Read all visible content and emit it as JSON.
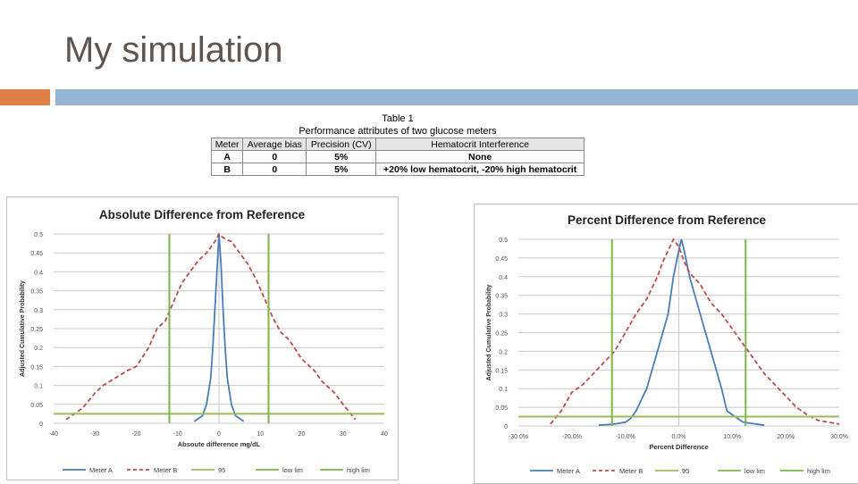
{
  "slide": {
    "title": "My simulation"
  },
  "table": {
    "caption": "Table 1",
    "subtitle": "Performance attributes of two glucose meters",
    "headers": [
      "Meter",
      "Average bias",
      "Precision (CV)",
      "Hematocrit Interference"
    ],
    "rows": [
      [
        "A",
        "0",
        "5%",
        "None"
      ],
      [
        "B",
        "0",
        "5%",
        "+20% low hematocrit, -20% high hematocrit"
      ]
    ]
  },
  "colors": {
    "meter_a": "#4a7ebb",
    "meter_b": "#be4b48",
    "threshold": "#9bbb59",
    "lim": "#7ab648",
    "grid": "#c8c8c8",
    "accent_orange": "#dd8047",
    "accent_blue": "#94b6d2"
  },
  "chart_data": [
    {
      "type": "line",
      "title": "Absolute Difference from Reference",
      "xlabel": "Absoute difference mg/dL",
      "ylabel": "Adjusted Cumulative Probability",
      "xlim": [
        -40,
        40
      ],
      "ylim": [
        0,
        0.5
      ],
      "x_ticks": [
        -40,
        -30,
        -20,
        -10,
        0,
        10,
        20,
        30,
        40
      ],
      "x_tick_labels": [
        "-40",
        "-30",
        "-20",
        "-10",
        "0",
        "10",
        "20",
        "30",
        "40"
      ],
      "y_ticks": [
        0,
        0.05,
        0.1,
        0.15,
        0.2,
        0.25,
        0.3,
        0.35,
        0.4,
        0.45,
        0.5
      ],
      "y_tick_labels": [
        "0",
        "0.05",
        "0.1",
        "0.15",
        "0.2",
        "0.25",
        "0.3",
        "0.35",
        "0.4",
        "0.45",
        "0.5"
      ],
      "series": [
        {
          "name": "Meter A",
          "style": "solid",
          "color": "#4a7ebb",
          "x": [
            -6,
            -4,
            -3,
            -2,
            -1.5,
            -1,
            -0.5,
            0,
            0.5,
            1,
            1.5,
            2,
            3,
            4,
            6
          ],
          "y": [
            0.005,
            0.02,
            0.05,
            0.12,
            0.2,
            0.3,
            0.4,
            0.5,
            0.42,
            0.3,
            0.2,
            0.12,
            0.05,
            0.02,
            0.005
          ]
        },
        {
          "name": "Meter B",
          "style": "dashed",
          "color": "#be4b48",
          "x": [
            -37,
            -33,
            -30,
            -28,
            -25,
            -22,
            -20,
            -17,
            -15,
            -13,
            -11,
            -9,
            -7,
            -5,
            -3,
            -1,
            0,
            1,
            3,
            5,
            7,
            9,
            11,
            13,
            15,
            17,
            20,
            23,
            25,
            28,
            30,
            33
          ],
          "y": [
            0.01,
            0.04,
            0.08,
            0.1,
            0.12,
            0.14,
            0.15,
            0.2,
            0.25,
            0.27,
            0.32,
            0.37,
            0.4,
            0.43,
            0.45,
            0.48,
            0.5,
            0.49,
            0.48,
            0.45,
            0.42,
            0.38,
            0.33,
            0.28,
            0.24,
            0.22,
            0.17,
            0.14,
            0.11,
            0.08,
            0.05,
            0.01
          ]
        },
        {
          "name": "95",
          "style": "solid",
          "color": "#9bbb59",
          "kind": "hline",
          "value": 0.025
        },
        {
          "name": "low lim",
          "style": "solid",
          "color": "#7ab648",
          "kind": "vline",
          "value": -12
        },
        {
          "name": "high lim",
          "style": "solid",
          "color": "#7ab648",
          "kind": "vline",
          "value": 12
        }
      ],
      "legend": [
        "Meter A",
        "Meter B",
        "95",
        "low lim",
        "high lim"
      ],
      "legend_position": "bottom"
    },
    {
      "type": "line",
      "title": "Percent Difference from Reference",
      "xlabel": "Percent Difference",
      "ylabel": "Adjusted Cumulative Probability",
      "xlim": [
        -30,
        30
      ],
      "ylim": [
        0,
        0.5
      ],
      "x_ticks": [
        -30,
        -20,
        -10,
        0,
        10,
        20,
        30
      ],
      "x_tick_labels": [
        "-30.0%",
        "-20.0%",
        "-10.0%",
        "0.0%",
        "10.0%",
        "20.0%",
        "30.0%"
      ],
      "y_ticks": [
        0,
        0.05,
        0.1,
        0.15,
        0.2,
        0.25,
        0.3,
        0.35,
        0.4,
        0.45,
        0.5
      ],
      "y_tick_labels": [
        "0",
        "0.05",
        "0.1",
        "0.15",
        "0.2",
        "0.25",
        "0.3",
        "0.35",
        "0.4",
        "0.45",
        "0.5"
      ],
      "series": [
        {
          "name": "Meter A",
          "style": "solid",
          "color": "#4a7ebb",
          "x": [
            -15,
            -12,
            -10,
            -9,
            -8,
            -6,
            -5,
            -4,
            -3,
            -2,
            -1,
            0,
            0.5,
            1,
            2,
            3,
            4,
            5,
            6,
            7,
            8,
            9,
            12,
            16
          ],
          "y": [
            0.002,
            0.005,
            0.01,
            0.02,
            0.04,
            0.1,
            0.15,
            0.2,
            0.25,
            0.3,
            0.4,
            0.47,
            0.5,
            0.47,
            0.4,
            0.35,
            0.3,
            0.25,
            0.2,
            0.15,
            0.1,
            0.04,
            0.01,
            0.002
          ]
        },
        {
          "name": "Meter B",
          "style": "dashed",
          "color": "#be4b48",
          "x": [
            -24,
            -22,
            -20,
            -18,
            -16,
            -14,
            -12,
            -10,
            -8,
            -6,
            -4,
            -3,
            -2,
            -1,
            0,
            1,
            2,
            4,
            6,
            8,
            10,
            12,
            14,
            16,
            18,
            20,
            22,
            24,
            26,
            28,
            30
          ],
          "y": [
            0.005,
            0.04,
            0.09,
            0.11,
            0.14,
            0.17,
            0.2,
            0.25,
            0.3,
            0.34,
            0.4,
            0.44,
            0.47,
            0.5,
            0.48,
            0.44,
            0.41,
            0.38,
            0.33,
            0.3,
            0.26,
            0.22,
            0.18,
            0.14,
            0.11,
            0.08,
            0.05,
            0.03,
            0.015,
            0.01,
            0.005
          ]
        },
        {
          "name": "95",
          "style": "solid",
          "color": "#9bbb59",
          "kind": "hline",
          "value": 0.025
        },
        {
          "name": "low lim",
          "style": "solid",
          "color": "#7ab648",
          "kind": "vline",
          "value": -12.5
        },
        {
          "name": "high lim",
          "style": "solid",
          "color": "#7ab648",
          "kind": "vline",
          "value": 12.5
        }
      ],
      "legend": [
        "Meter A",
        "Meter B",
        "95",
        "low lim",
        "high lim"
      ],
      "legend_position": "bottom"
    }
  ]
}
